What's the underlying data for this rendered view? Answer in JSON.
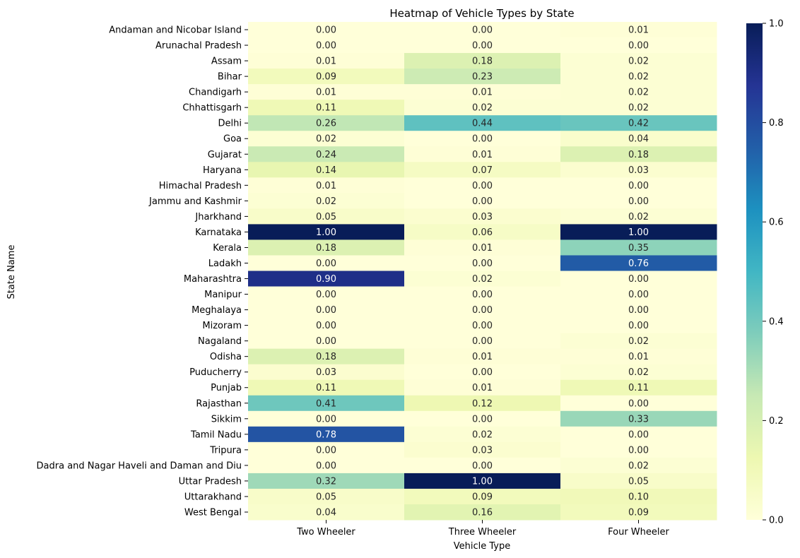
{
  "chart_data": {
    "type": "heatmap",
    "title": "Heatmap of Vehicle Types by State",
    "xlabel": "Vehicle Type",
    "ylabel": "State Name",
    "columns": [
      "Two Wheeler",
      "Three Wheeler",
      "Four Wheeler"
    ],
    "rows": [
      "Andaman and Nicobar Island",
      "Arunachal Pradesh",
      "Assam",
      "Bihar",
      "Chandigarh",
      "Chhattisgarh",
      "Delhi",
      "Goa",
      "Gujarat",
      "Haryana",
      "Himachal Pradesh",
      "Jammu and Kashmir",
      "Jharkhand",
      "Karnataka",
      "Kerala",
      "Ladakh",
      "Maharashtra",
      "Manipur",
      "Meghalaya",
      "Mizoram",
      "Nagaland",
      "Odisha",
      "Puducherry",
      "Punjab",
      "Rajasthan",
      "Sikkim",
      "Tamil Nadu",
      "Tripura",
      "Dadra and Nagar Haveli and Daman and Diu",
      "Uttar Pradesh",
      "Uttarakhand",
      "West Bengal"
    ],
    "values": [
      [
        0.0,
        0.0,
        0.01
      ],
      [
        0.0,
        0.0,
        0.0
      ],
      [
        0.01,
        0.18,
        0.02
      ],
      [
        0.09,
        0.23,
        0.02
      ],
      [
        0.01,
        0.01,
        0.02
      ],
      [
        0.11,
        0.02,
        0.02
      ],
      [
        0.26,
        0.44,
        0.42
      ],
      [
        0.02,
        0.0,
        0.04
      ],
      [
        0.24,
        0.01,
        0.18
      ],
      [
        0.14,
        0.07,
        0.03
      ],
      [
        0.01,
        0.0,
        0.0
      ],
      [
        0.02,
        0.0,
        0.0
      ],
      [
        0.05,
        0.03,
        0.02
      ],
      [
        1.0,
        0.06,
        1.0
      ],
      [
        0.18,
        0.01,
        0.35
      ],
      [
        0.0,
        0.0,
        0.76
      ],
      [
        0.9,
        0.02,
        0.0
      ],
      [
        0.0,
        0.0,
        0.0
      ],
      [
        0.0,
        0.0,
        0.0
      ],
      [
        0.0,
        0.0,
        0.0
      ],
      [
        0.0,
        0.0,
        0.02
      ],
      [
        0.18,
        0.01,
        0.01
      ],
      [
        0.03,
        0.0,
        0.02
      ],
      [
        0.11,
        0.01,
        0.11
      ],
      [
        0.41,
        0.12,
        0.0
      ],
      [
        0.0,
        0.0,
        0.33
      ],
      [
        0.78,
        0.02,
        0.0
      ],
      [
        0.0,
        0.03,
        0.0
      ],
      [
        0.0,
        0.0,
        0.02
      ],
      [
        0.32,
        1.0,
        0.05
      ],
      [
        0.05,
        0.09,
        0.1
      ],
      [
        0.04,
        0.16,
        0.09
      ]
    ],
    "colorbar": {
      "range": [
        0,
        1
      ],
      "ticks": [
        "0.0",
        "0.2",
        "0.4",
        "0.6",
        "0.8",
        "1.0"
      ],
      "colormap": "YlGnBu"
    },
    "annotation_format": "2 decimals",
    "legend": "colorbar at right",
    "grid": false
  }
}
